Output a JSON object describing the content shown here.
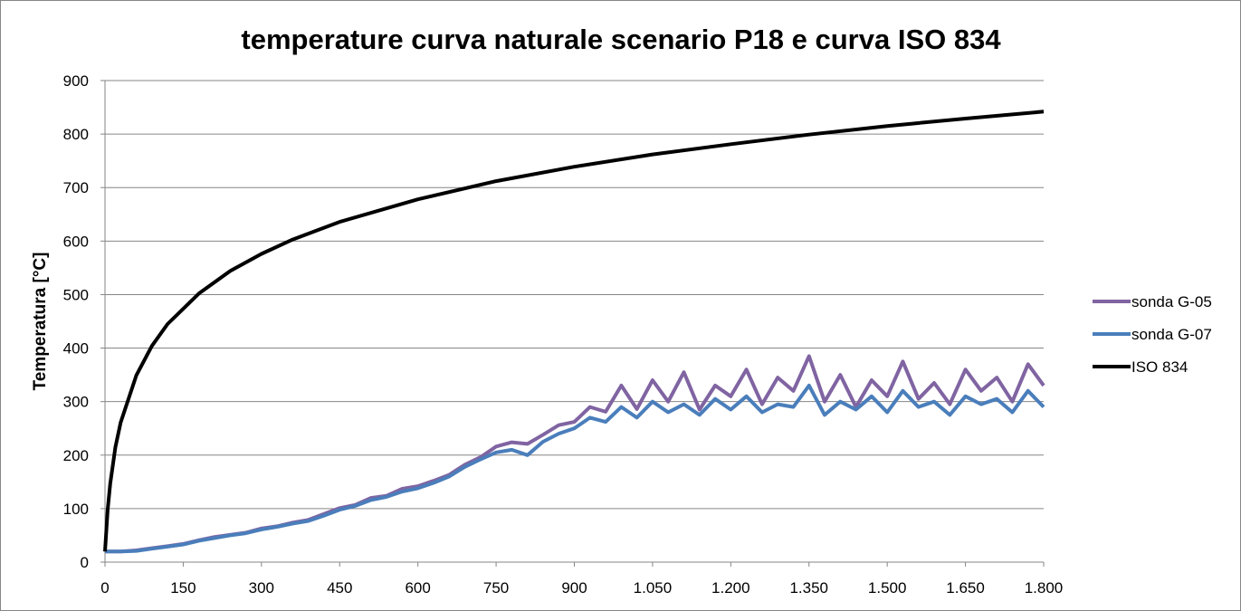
{
  "chart_data": {
    "type": "line",
    "title": "temperature curva naturale scenario P18 e curva ISO 834",
    "xlabel": "",
    "ylabel": "Temperatura [°C]",
    "xlim": [
      0,
      1800
    ],
    "ylim": [
      0,
      900
    ],
    "x_ticks": [
      "0",
      "150",
      "300",
      "450",
      "600",
      "750",
      "900",
      "1.050",
      "1.200",
      "1.350",
      "1.500",
      "1.650",
      "1.800"
    ],
    "y_ticks": [
      "0",
      "100",
      "200",
      "300",
      "400",
      "500",
      "600",
      "700",
      "800",
      "900"
    ],
    "grid": "horizontal",
    "legend": "right",
    "series": [
      {
        "name": "sonda G-05",
        "color": "#8064A2",
        "x": [
          0,
          30,
          60,
          90,
          120,
          150,
          180,
          210,
          240,
          270,
          300,
          330,
          360,
          390,
          420,
          450,
          480,
          510,
          540,
          570,
          600,
          630,
          660,
          690,
          720,
          750,
          780,
          810,
          840,
          870,
          900,
          930,
          960,
          990,
          1020,
          1050,
          1080,
          1110,
          1140,
          1170,
          1200,
          1230,
          1260,
          1290,
          1320,
          1350,
          1380,
          1410,
          1440,
          1470,
          1500,
          1530,
          1560,
          1590,
          1620,
          1650,
          1680,
          1710,
          1740,
          1770,
          1800
        ],
        "y": [
          20,
          20,
          22,
          26,
          30,
          34,
          41,
          47,
          51,
          55,
          63,
          67,
          74,
          79,
          90,
          101,
          107,
          120,
          124,
          137,
          142,
          152,
          163,
          182,
          196,
          216,
          224,
          221,
          238,
          256,
          262,
          290,
          281,
          330,
          286,
          340,
          300,
          355,
          285,
          330,
          310,
          360,
          295,
          345,
          320,
          385,
          300,
          350,
          290,
          340,
          310,
          375,
          305,
          335,
          295,
          360,
          320,
          345,
          300,
          370,
          330
        ]
      },
      {
        "name": "sonda G-07",
        "color": "#4A7EBB",
        "x": [
          0,
          30,
          60,
          90,
          120,
          150,
          180,
          210,
          240,
          270,
          300,
          330,
          360,
          390,
          420,
          450,
          480,
          510,
          540,
          570,
          600,
          630,
          660,
          690,
          720,
          750,
          780,
          810,
          840,
          870,
          900,
          930,
          960,
          990,
          1020,
          1050,
          1080,
          1110,
          1140,
          1170,
          1200,
          1230,
          1260,
          1290,
          1320,
          1350,
          1380,
          1410,
          1440,
          1470,
          1500,
          1530,
          1560,
          1590,
          1620,
          1650,
          1680,
          1710,
          1740,
          1770,
          1800
        ],
        "y": [
          20,
          20,
          21,
          25,
          29,
          33,
          40,
          45,
          50,
          54,
          61,
          66,
          72,
          77,
          87,
          98,
          105,
          116,
          122,
          132,
          138,
          148,
          160,
          178,
          192,
          205,
          210,
          200,
          225,
          240,
          250,
          270,
          262,
          290,
          270,
          300,
          280,
          295,
          275,
          305,
          285,
          310,
          280,
          295,
          290,
          330,
          275,
          300,
          285,
          310,
          280,
          320,
          290,
          300,
          275,
          310,
          295,
          305,
          280,
          320,
          290
        ]
      },
      {
        "name": "ISO 834",
        "color": "#000000",
        "x": [
          0,
          5,
          10,
          20,
          30,
          60,
          90,
          120,
          180,
          240,
          300,
          360,
          450,
          600,
          750,
          900,
          1050,
          1200,
          1350,
          1500,
          1650,
          1800
        ],
        "y": [
          20,
          97,
          147,
          215,
          261,
          349,
          404,
          445,
          502,
          544,
          576,
          603,
          636,
          678,
          712,
          739,
          762,
          781,
          799,
          815,
          829,
          842
        ]
      }
    ]
  }
}
